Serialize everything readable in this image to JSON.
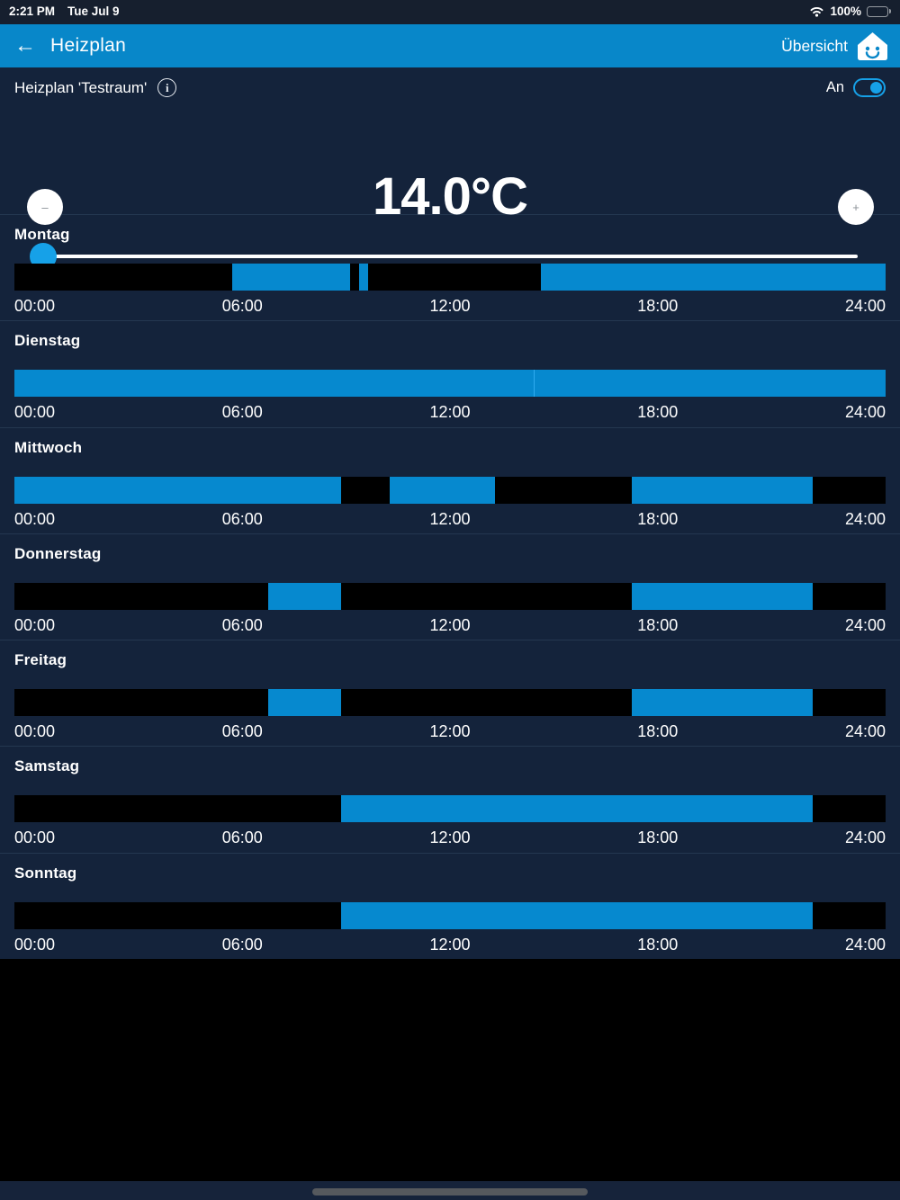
{
  "status_bar": {
    "time": "2:21 PM",
    "date": "Tue Jul 9",
    "battery_percent": "100%"
  },
  "header": {
    "back_icon": "←",
    "title": "Heizplan",
    "overview_label": "Übersicht"
  },
  "control": {
    "schedule_name": "Heizplan 'Testraum'",
    "info_icon": "i",
    "power_label": "An",
    "power_on": true,
    "temperature": "14.0°C",
    "minus_label": "–",
    "plus_label": "+",
    "slider_percent": 1.3
  },
  "timeline": {
    "tick_labels": [
      "00:00",
      "06:00",
      "12:00",
      "18:00",
      "24:00"
    ],
    "days": [
      {
        "name": "Montag",
        "on_segments": [
          [
            "06:00",
            "09:15"
          ],
          [
            "09:30",
            "09:45"
          ],
          [
            "14:30",
            "24:00"
          ]
        ]
      },
      {
        "name": "Dienstag",
        "on_segments": [
          [
            "00:00",
            "14:20"
          ],
          [
            "14:20",
            "24:00"
          ]
        ]
      },
      {
        "name": "Mittwoch",
        "on_segments": [
          [
            "00:00",
            "09:00"
          ],
          [
            "10:20",
            "13:15"
          ],
          [
            "17:00",
            "22:00"
          ]
        ]
      },
      {
        "name": "Donnerstag",
        "on_segments": [
          [
            "07:00",
            "09:00"
          ],
          [
            "17:00",
            "22:00"
          ]
        ]
      },
      {
        "name": "Freitag",
        "on_segments": [
          [
            "07:00",
            "09:00"
          ],
          [
            "17:00",
            "22:00"
          ]
        ]
      },
      {
        "name": "Samstag",
        "on_segments": [
          [
            "09:00",
            "22:00"
          ]
        ]
      },
      {
        "name": "Sonntag",
        "on_segments": [
          [
            "09:00",
            "22:00"
          ]
        ]
      }
    ]
  },
  "colors": {
    "statusbar_navy": "#161f2e",
    "header_blue": "#0887c9",
    "background_navy": "#14233b",
    "accent_blue": "#16a1e8",
    "bar_on_blue": "#0689cf",
    "bar_off_black": "#000000",
    "bar_divider_blue": "#2fabf0",
    "bottom_strip_navy": "#16233a",
    "home_indicator_gray": "#56595d"
  }
}
